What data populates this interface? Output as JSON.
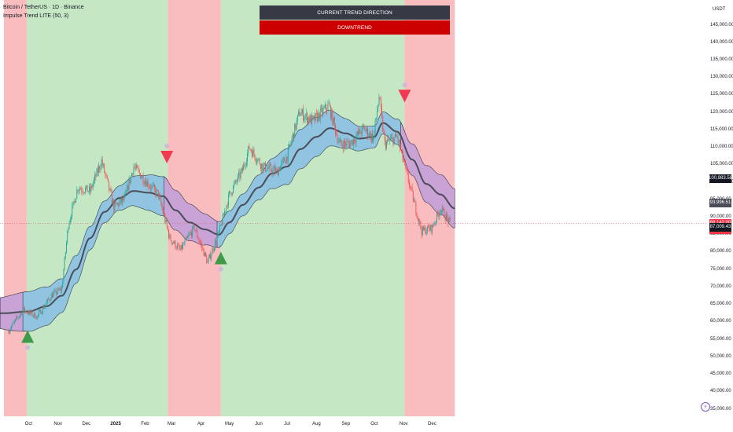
{
  "header": {
    "symbol_line": "Bitcoin / TetherUS · 1D · Binance",
    "indicator_line": "Impulse Trend LITE (50, 3)"
  },
  "trend_panel": {
    "heading": "CURRENT TREND DIRECTION",
    "status": "DOWNTREND",
    "heading_color": "#363a45",
    "status_color": "#cc0000"
  },
  "colors": {
    "downtrend_zone": "#f9bcbf",
    "uptrend_zone": "#c6e7c4",
    "band_fill_up": "#90c4e0",
    "band_fill_down": "#c9a2d6",
    "midline": "#4a4d57",
    "candle_up": "#26a69a",
    "candle_down": "#ef5350",
    "buy_signal": "#3d9b4a",
    "sell_signal": "#f0394f"
  },
  "icons": {
    "buy_signal": "triangle-up-icon",
    "sell_signal": "triangle-down-icon",
    "settings": "lightning-bolt-icon"
  },
  "chart_data": {
    "type": "candlestick",
    "title": "Bitcoin / TetherUS · 1D · Binance",
    "unit": "USDT",
    "ylim": [
      35000,
      150000
    ],
    "y_ticks": [
      "35,000.00",
      "40,000.00",
      "45,000.00",
      "50,000.00",
      "55,000.00",
      "60,000.00",
      "65,000.00",
      "70,000.00",
      "75,000.00",
      "80,000.00",
      "85,000.00",
      "90,000.00",
      "95,000.00",
      "100,000.00",
      "105,000.00",
      "110,000.00",
      "115,000.00",
      "120,000.00",
      "125,000.00",
      "130,000.00",
      "135,000.00",
      "140,000.00",
      "145,000.00"
    ],
    "x_ticks": [
      "Oct",
      "Nov",
      "Dec",
      "2025",
      "Feb",
      "Mar",
      "Apr",
      "May",
      "Jun",
      "Jul",
      "Aug",
      "Sep",
      "Oct",
      "Nov",
      "Dec"
    ],
    "close_series": [
      {
        "x": "Sep 10",
        "y": 57500
      },
      {
        "x": "Sep 25",
        "y": 63500
      },
      {
        "x": "Oct 10",
        "y": 61500
      },
      {
        "x": "Oct 25",
        "y": 67500
      },
      {
        "x": "Nov 5",
        "y": 69500
      },
      {
        "x": "Nov 12",
        "y": 88000
      },
      {
        "x": "Nov 22",
        "y": 98500
      },
      {
        "x": "Dec 5",
        "y": 97500
      },
      {
        "x": "Dec 17",
        "y": 106000
      },
      {
        "x": "Dec 30",
        "y": 93000
      },
      {
        "x": "Jan 10",
        "y": 95000
      },
      {
        "x": "Jan 20",
        "y": 104500
      },
      {
        "x": "Feb 1",
        "y": 100500
      },
      {
        "x": "Feb 15",
        "y": 96500
      },
      {
        "x": "Feb 27",
        "y": 84000
      },
      {
        "x": "Mar 10",
        "y": 80500
      },
      {
        "x": "Mar 25",
        "y": 87000
      },
      {
        "x": "Apr 8",
        "y": 77000
      },
      {
        "x": "Apr 20",
        "y": 85500
      },
      {
        "x": "May 1",
        "y": 96500
      },
      {
        "x": "May 15",
        "y": 103500
      },
      {
        "x": "May 22",
        "y": 110000
      },
      {
        "x": "Jun 5",
        "y": 104500
      },
      {
        "x": "Jun 20",
        "y": 103000
      },
      {
        "x": "Jul 1",
        "y": 107500
      },
      {
        "x": "Jul 14",
        "y": 120000
      },
      {
        "x": "Jul 28",
        "y": 117500
      },
      {
        "x": "Aug 14",
        "y": 122000
      },
      {
        "x": "Aug 25",
        "y": 111000
      },
      {
        "x": "Sep 5",
        "y": 111000
      },
      {
        "x": "Sep 20",
        "y": 115500
      },
      {
        "x": "Sep 30",
        "y": 112500
      },
      {
        "x": "Oct 6",
        "y": 124500
      },
      {
        "x": "Oct 12",
        "y": 111000
      },
      {
        "x": "Oct 25",
        "y": 113000
      },
      {
        "x": "Nov 5",
        "y": 101500
      },
      {
        "x": "Nov 20",
        "y": 86000
      },
      {
        "x": "Dec 1",
        "y": 87000
      },
      {
        "x": "Dec 10",
        "y": 92500
      },
      {
        "x": "Dec 20",
        "y": 88100
      }
    ],
    "midline": [
      {
        "x": "Sep 5",
        "y": 62500
      },
      {
        "x": "Oct 1",
        "y": 63000
      },
      {
        "x": "Oct 20",
        "y": 64500
      },
      {
        "x": "Nov 5",
        "y": 67500
      },
      {
        "x": "Nov 20",
        "y": 75000
      },
      {
        "x": "Dec 5",
        "y": 84000
      },
      {
        "x": "Dec 20",
        "y": 91500
      },
      {
        "x": "Jan 5",
        "y": 95500
      },
      {
        "x": "Jan 20",
        "y": 97500
      },
      {
        "x": "Feb 5",
        "y": 97000
      },
      {
        "x": "Feb 20",
        "y": 96000
      },
      {
        "x": "Mar 5",
        "y": 92000
      },
      {
        "x": "Mar 20",
        "y": 88500
      },
      {
        "x": "Apr 5",
        "y": 86500
      },
      {
        "x": "Apr 20",
        "y": 85000
      },
      {
        "x": "May 1",
        "y": 88500
      },
      {
        "x": "May 15",
        "y": 93500
      },
      {
        "x": "Jun 1",
        "y": 98500
      },
      {
        "x": "Jun 15",
        "y": 102500
      },
      {
        "x": "Jul 1",
        "y": 104500
      },
      {
        "x": "Jul 15",
        "y": 109500
      },
      {
        "x": "Aug 1",
        "y": 113000
      },
      {
        "x": "Aug 15",
        "y": 115500
      },
      {
        "x": "Sep 1",
        "y": 114000
      },
      {
        "x": "Sep 15",
        "y": 112500
      },
      {
        "x": "Oct 1",
        "y": 113000
      },
      {
        "x": "Oct 10",
        "y": 117000
      },
      {
        "x": "Oct 25",
        "y": 114500
      },
      {
        "x": "Nov 10",
        "y": 106500
      },
      {
        "x": "Nov 25",
        "y": 99500
      },
      {
        "x": "Dec 10",
        "y": 96500
      },
      {
        "x": "Dec 25",
        "y": 92500
      }
    ],
    "band_half_width": 5200,
    "trend_zones": [
      {
        "from": "Sep 5",
        "to": "Sep 29",
        "trend": "down"
      },
      {
        "from": "Sep 29",
        "to": "Feb 25",
        "trend": "up"
      },
      {
        "from": "Feb 25",
        "to": "Apr 22",
        "trend": "down"
      },
      {
        "from": "Apr 22",
        "to": "Nov 2",
        "trend": "up"
      },
      {
        "from": "Nov 2",
        "to": "Dec 25",
        "trend": "down"
      }
    ],
    "signals": [
      {
        "type": "buy",
        "x": "Sep 30",
        "y": 54000
      },
      {
        "type": "sell",
        "x": "Feb 24",
        "y": 109000
      },
      {
        "type": "buy",
        "x": "Apr 22",
        "y": 76500
      },
      {
        "type": "sell",
        "x": "Nov 2",
        "y": 126500
      }
    ],
    "price_labels": [
      {
        "value": "100,983.58",
        "y": 100983.58,
        "color": "#131722"
      },
      {
        "value": "93,996.51",
        "y": 93996.51,
        "color": "#4a4d57"
      },
      {
        "value": "88,142.00",
        "y": 88142,
        "color": "#f23645"
      },
      {
        "value": "14:03:50",
        "y": 86500,
        "color": "#f23645"
      },
      {
        "value": "87,009.43",
        "y": 87009.43,
        "color": "#131722"
      }
    ],
    "current_price": 88142.0
  }
}
